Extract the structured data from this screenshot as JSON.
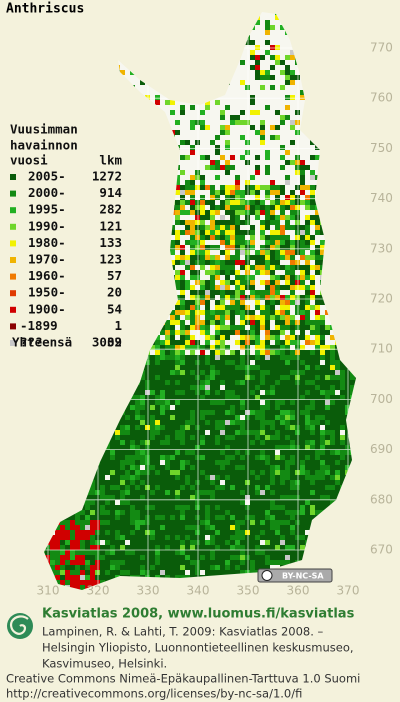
{
  "title": "Anthriscus",
  "legend": {
    "heading": [
      "Vuusimman",
      "havainnon"
    ],
    "col_year": "vuosi",
    "col_count": "lkm",
    "rows": [
      {
        "label": "2005-",
        "count": 1272,
        "color": "#0a5c0a"
      },
      {
        "label": "2000-",
        "count": 914,
        "color": "#138a13"
      },
      {
        "label": "1995-",
        "count": 282,
        "color": "#22b022"
      },
      {
        "label": "1990-",
        "count": 121,
        "color": "#6fd62a"
      },
      {
        "label": "1980-",
        "count": 133,
        "color": "#f2f200"
      },
      {
        "label": "1970-",
        "count": 123,
        "color": "#f0b400"
      },
      {
        "label": "1960-",
        "count": 57,
        "color": "#f07a00"
      },
      {
        "label": "1950-",
        "count": 20,
        "color": "#e03a00"
      },
      {
        "label": "1900-",
        "count": 54,
        "color": "#d00000"
      },
      {
        "label": "-1899",
        "count": 1,
        "color": "#8a0000"
      },
      {
        "label": "???",
        "count": 32,
        "color": "#c8c8c8"
      }
    ],
    "total_label": "Yhteensä",
    "total": 3009
  },
  "y_axis": [
    770,
    760,
    750,
    740,
    730,
    720,
    710,
    700,
    690,
    680,
    670
  ],
  "x_axis": [
    310,
    320,
    330,
    340,
    350,
    360,
    370
  ],
  "license_badge": "BY-NC-SA",
  "footer": {
    "headline": "Kasviatlas 2008, www.luomus.fi/kasviatlas",
    "citation": [
      "Lampinen, R. & Lahti, T. 2009: Kasviatlas 2008. –",
      "Helsingin Yliopisto, Luonnontieteellinen keskusmuseo,",
      "Kasvimuseo, Helsinki."
    ],
    "license": "Creative Commons Nimeä-Epäkaupallinen-Tarttuva 1.0 Suomi",
    "url": "http://creativecommons.org/licenses/by-nc-sa/1.0/fi"
  }
}
